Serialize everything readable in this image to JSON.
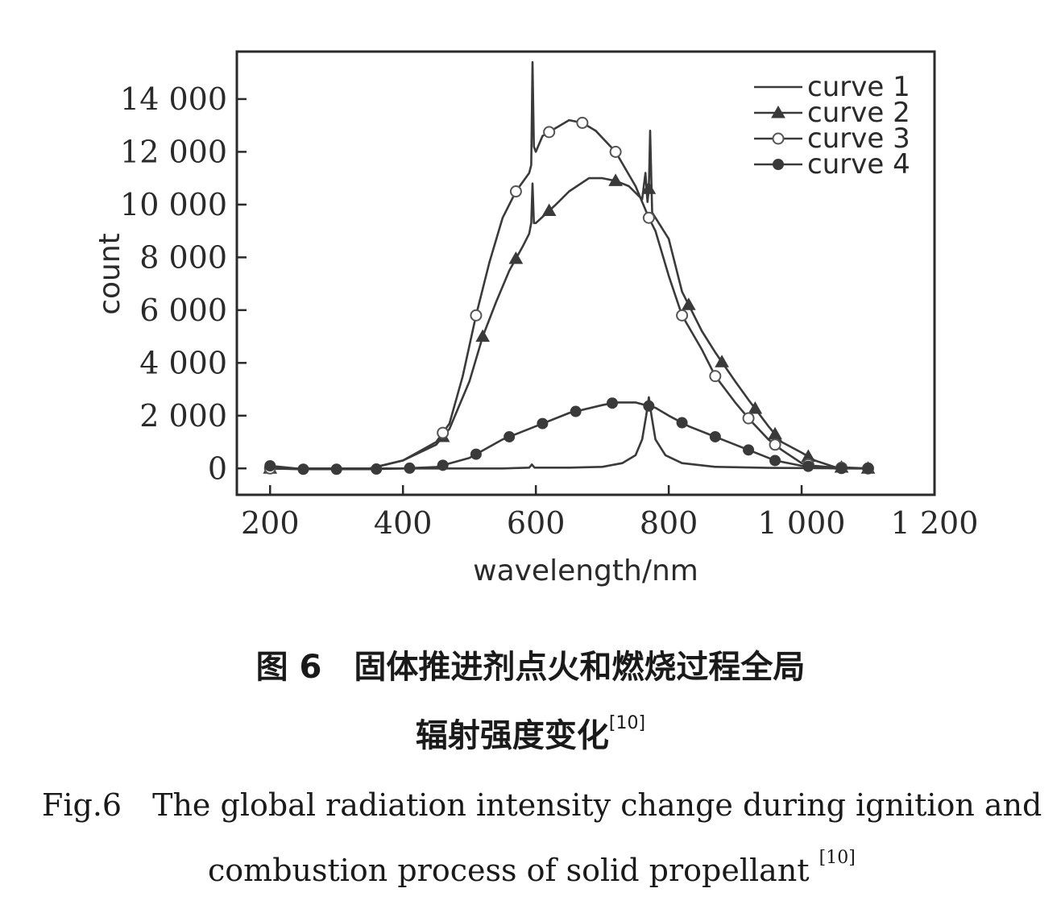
{
  "chart_data": {
    "type": "line",
    "xlabel": "wavelength/nm",
    "ylabel": "count",
    "xlim": [
      150,
      1200
    ],
    "ylim": [
      -1000,
      15800
    ],
    "xticks": [
      200,
      400,
      600,
      800,
      1000,
      1200
    ],
    "xtick_labels": [
      "200",
      "400",
      "600",
      "800",
      "1 000",
      "1 200"
    ],
    "yticks": [
      0,
      2000,
      4000,
      6000,
      8000,
      10000,
      12000,
      14000
    ],
    "ytick_labels": [
      "0",
      "2 000",
      "4 000",
      "6 000",
      "8 000",
      "10 000",
      "12 000",
      "14 000"
    ],
    "legend_position": "top-right",
    "series": [
      {
        "name": "curve 1",
        "marker": "none",
        "points": [
          [
            200,
            0
          ],
          [
            300,
            0
          ],
          [
            400,
            0
          ],
          [
            500,
            0
          ],
          [
            550,
            0
          ],
          [
            590,
            30
          ],
          [
            594,
            150
          ],
          [
            598,
            30
          ],
          [
            650,
            30
          ],
          [
            700,
            60
          ],
          [
            730,
            200
          ],
          [
            750,
            500
          ],
          [
            760,
            1100
          ],
          [
            766,
            2000
          ],
          [
            770,
            2700
          ],
          [
            774,
            2000
          ],
          [
            780,
            1100
          ],
          [
            795,
            500
          ],
          [
            820,
            200
          ],
          [
            870,
            60
          ],
          [
            950,
            20
          ],
          [
            1100,
            0
          ]
        ],
        "marker_x": []
      },
      {
        "name": "curve 2",
        "marker": "triangle",
        "points": [
          [
            200,
            0
          ],
          [
            250,
            -30
          ],
          [
            300,
            -30
          ],
          [
            350,
            0
          ],
          [
            400,
            300
          ],
          [
            450,
            900
          ],
          [
            470,
            1500
          ],
          [
            500,
            3300
          ],
          [
            520,
            5000
          ],
          [
            540,
            6300
          ],
          [
            560,
            7500
          ],
          [
            580,
            8400
          ],
          [
            590,
            8900
          ],
          [
            593,
            9300
          ],
          [
            595,
            10800
          ],
          [
            597,
            9300
          ],
          [
            600,
            9300
          ],
          [
            630,
            10000
          ],
          [
            650,
            10500
          ],
          [
            680,
            11000
          ],
          [
            700,
            11000
          ],
          [
            720,
            10900
          ],
          [
            740,
            10700
          ],
          [
            760,
            10200
          ],
          [
            765,
            11200
          ],
          [
            768,
            10100
          ],
          [
            770,
            10600
          ],
          [
            772,
            12800
          ],
          [
            775,
            9700
          ],
          [
            800,
            8700
          ],
          [
            820,
            6700
          ],
          [
            850,
            5200
          ],
          [
            870,
            4400
          ],
          [
            900,
            3300
          ],
          [
            920,
            2600
          ],
          [
            950,
            1600
          ],
          [
            970,
            1000
          ],
          [
            1000,
            600
          ],
          [
            1020,
            300
          ],
          [
            1050,
            50
          ],
          [
            1100,
            0
          ]
        ],
        "marker_x": [
          200,
          460,
          520,
          570,
          620,
          720,
          770,
          830,
          880,
          930,
          960,
          1010,
          1060,
          1100
        ]
      },
      {
        "name": "curve 3",
        "marker": "circle-open",
        "points": [
          [
            200,
            0
          ],
          [
            250,
            -30
          ],
          [
            300,
            -30
          ],
          [
            350,
            0
          ],
          [
            400,
            300
          ],
          [
            450,
            1000
          ],
          [
            470,
            1700
          ],
          [
            490,
            3500
          ],
          [
            510,
            5800
          ],
          [
            530,
            7800
          ],
          [
            550,
            9500
          ],
          [
            570,
            10500
          ],
          [
            590,
            11200
          ],
          [
            593,
            11500
          ],
          [
            595,
            15400
          ],
          [
            597,
            12200
          ],
          [
            600,
            12000
          ],
          [
            610,
            12600
          ],
          [
            630,
            12900
          ],
          [
            650,
            13200
          ],
          [
            670,
            13100
          ],
          [
            690,
            12800
          ],
          [
            720,
            12000
          ],
          [
            750,
            10700
          ],
          [
            770,
            9500
          ],
          [
            780,
            9000
          ],
          [
            800,
            7300
          ],
          [
            820,
            5800
          ],
          [
            850,
            4500
          ],
          [
            870,
            3500
          ],
          [
            900,
            2500
          ],
          [
            920,
            1900
          ],
          [
            950,
            1100
          ],
          [
            970,
            700
          ],
          [
            1000,
            200
          ],
          [
            1020,
            100
          ],
          [
            1050,
            30
          ],
          [
            1100,
            0
          ]
        ],
        "marker_x": [
          200,
          460,
          510,
          570,
          620,
          670,
          720,
          770,
          820,
          870,
          920,
          960,
          1010,
          1060,
          1100
        ]
      },
      {
        "name": "curve 4",
        "marker": "circle-filled",
        "points": [
          [
            200,
            100
          ],
          [
            250,
            -30
          ],
          [
            300,
            -30
          ],
          [
            350,
            -30
          ],
          [
            400,
            0
          ],
          [
            450,
            50
          ],
          [
            500,
            400
          ],
          [
            550,
            1100
          ],
          [
            600,
            1600
          ],
          [
            650,
            2100
          ],
          [
            700,
            2400
          ],
          [
            720,
            2500
          ],
          [
            750,
            2500
          ],
          [
            780,
            2300
          ],
          [
            800,
            2000
          ],
          [
            830,
            1600
          ],
          [
            870,
            1200
          ],
          [
            900,
            900
          ],
          [
            930,
            600
          ],
          [
            960,
            300
          ],
          [
            1000,
            100
          ],
          [
            1050,
            0
          ],
          [
            1100,
            0
          ]
        ],
        "marker_x": [
          200,
          250,
          300,
          360,
          410,
          460,
          510,
          560,
          610,
          660,
          715,
          770,
          820,
          870,
          920,
          960,
          1010,
          1060,
          1100
        ]
      }
    ]
  },
  "caption": {
    "cn_line1": "图 6　固体推进剂点火和燃烧过程全局",
    "cn_line2": "辐射强度变化",
    "cn_ref": "[10]",
    "en_line1": "Fig.6　The global radiation intensity change during ignition and",
    "en_line2": "combustion process of solid propellant",
    "en_ref": "[10]"
  },
  "colors": {
    "line": "#3a3a3a",
    "text": "#2a2a2a"
  }
}
